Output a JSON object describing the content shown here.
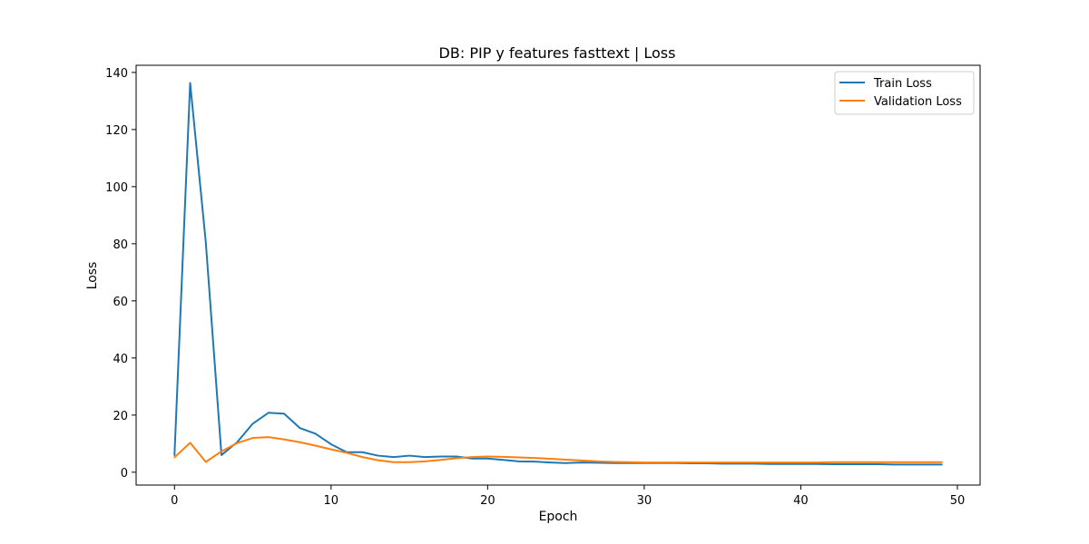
{
  "chart_data": {
    "type": "line",
    "title": "DB: PIP y features fasttext | Loss",
    "xlabel": "Epoch",
    "ylabel": "Loss",
    "xlim": [
      -2.45,
      51.45
    ],
    "ylim": [
      -4.5,
      142.5
    ],
    "xticks": [
      0,
      10,
      20,
      30,
      40,
      50
    ],
    "yticks": [
      0,
      20,
      40,
      60,
      80,
      100,
      120,
      140
    ],
    "legend": "top-right",
    "x": [
      0,
      1,
      2,
      3,
      4,
      5,
      6,
      7,
      8,
      9,
      10,
      11,
      12,
      13,
      14,
      15,
      16,
      17,
      18,
      19,
      20,
      21,
      22,
      23,
      24,
      25,
      26,
      27,
      28,
      29,
      30,
      31,
      32,
      33,
      34,
      35,
      36,
      37,
      38,
      39,
      40,
      41,
      42,
      43,
      44,
      45,
      46,
      47,
      48,
      49
    ],
    "series": [
      {
        "name": "Train Loss",
        "color": "#1f77b4",
        "values": [
          6.0,
          136.3,
          80.5,
          6.0,
          10.5,
          17.0,
          20.8,
          20.5,
          15.5,
          13.5,
          9.8,
          7.0,
          7.0,
          5.8,
          5.3,
          5.8,
          5.3,
          5.5,
          5.5,
          4.8,
          4.8,
          4.3,
          3.8,
          3.7,
          3.4,
          3.2,
          3.4,
          3.3,
          3.2,
          3.2,
          3.2,
          3.2,
          3.2,
          3.1,
          3.1,
          3.0,
          3.0,
          3.0,
          2.9,
          2.9,
          2.9,
          2.9,
          2.8,
          2.8,
          2.8,
          2.8,
          2.7,
          2.7,
          2.7,
          2.7
        ]
      },
      {
        "name": "Validation Loss",
        "color": "#ff7f0e",
        "values": [
          5.2,
          10.3,
          3.6,
          7.3,
          10.2,
          12.0,
          12.3,
          11.5,
          10.5,
          9.3,
          8.0,
          6.8,
          5.3,
          4.2,
          3.5,
          3.5,
          3.8,
          4.3,
          4.9,
          5.3,
          5.5,
          5.4,
          5.2,
          5.0,
          4.7,
          4.4,
          4.1,
          3.8,
          3.6,
          3.5,
          3.4,
          3.4,
          3.4,
          3.4,
          3.4,
          3.4,
          3.4,
          3.4,
          3.4,
          3.4,
          3.4,
          3.4,
          3.5,
          3.5,
          3.5,
          3.5,
          3.5,
          3.5,
          3.5,
          3.5
        ]
      }
    ]
  }
}
